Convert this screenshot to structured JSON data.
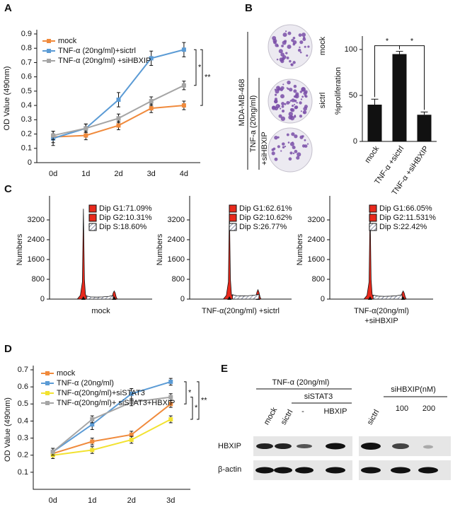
{
  "panel_labels": [
    "A",
    "B",
    "C",
    "D",
    "E"
  ],
  "chart_data": [
    {
      "type": "line",
      "ylabel": "OD Value (490nm)",
      "categories": [
        "0d",
        "1d",
        "2d",
        "3d",
        "4d"
      ],
      "series": [
        {
          "name": "mock",
          "color": "#f08a3c",
          "values": [
            0.18,
            0.19,
            0.26,
            0.38,
            0.4
          ],
          "errors": [
            0.04,
            0.03,
            0.03,
            0.03,
            0.03
          ]
        },
        {
          "name": "TNF-α (20ng/ml)+sictrl",
          "color": "#5b9bd5",
          "values": [
            0.17,
            0.24,
            0.44,
            0.73,
            0.79
          ],
          "errors": [
            0.05,
            0.03,
            0.05,
            0.05,
            0.05
          ]
        },
        {
          "name": "TNF-α (20ng/ml) +siHBXIP",
          "color": "#a5a5a5",
          "values": [
            0.19,
            0.24,
            0.31,
            0.43,
            0.54
          ],
          "errors": [
            0.03,
            0.03,
            0.03,
            0.03,
            0.03
          ]
        }
      ],
      "ylim": [
        0,
        0.9
      ],
      "yticks": [
        0,
        0.1,
        0.2,
        0.3,
        0.4,
        0.5,
        0.6,
        0.7,
        0.8,
        0.9
      ],
      "annotations": [
        "*",
        "**"
      ]
    },
    {
      "type": "bar",
      "ylabel": "%proliferation",
      "categories": [
        "mock",
        "TNF-α +sictrl",
        "TNF-α +siHBXIP"
      ],
      "values": [
        40,
        95,
        29
      ],
      "errors": [
        6,
        3,
        3
      ],
      "color": "#111111",
      "ylim": [
        0,
        110
      ],
      "yticks": [
        0,
        50,
        100
      ],
      "annotations": [
        "*",
        "*"
      ]
    },
    {
      "type": "area",
      "ylabel": "Numbers",
      "xlabel": [
        "mock"
      ],
      "xlim": [
        0,
        100
      ],
      "ylim": [
        0,
        4000
      ],
      "yticks": [
        0,
        800,
        1600,
        2400,
        3200
      ],
      "series": [
        {
          "name": "Dip G1:71.09%",
          "color": "#e8291c",
          "x": [
            27,
            30,
            32,
            33,
            34,
            35,
            36,
            38
          ],
          "values": [
            0,
            150,
            700,
            3650,
            800,
            200,
            90,
            0
          ]
        },
        {
          "name": "Dip G2:10.31%",
          "color": "#e8291c",
          "x": [
            60,
            61,
            62,
            63,
            64,
            65,
            66
          ],
          "values": [
            0,
            80,
            250,
            330,
            250,
            80,
            0
          ]
        },
        {
          "name": "Dip S:18.60%",
          "color": "#1f2d5a",
          "pattern": "hatch",
          "x": [
            36,
            40,
            46,
            52,
            58,
            62
          ],
          "values": [
            130,
            90,
            80,
            90,
            110,
            150
          ]
        }
      ]
    },
    {
      "type": "area",
      "ylabel": "Numbers",
      "xlabel": [
        "TNF-α(20ng/ml) +sictrl"
      ],
      "xlim": [
        0,
        100
      ],
      "ylim": [
        0,
        4000
      ],
      "yticks": [
        0,
        800,
        1600,
        2400,
        3200
      ],
      "series": [
        {
          "name": "Dip G1:62.61%",
          "color": "#e8291c",
          "x": [
            33,
            36,
            38,
            39,
            40,
            41,
            42,
            44
          ],
          "values": [
            0,
            150,
            700,
            3700,
            800,
            200,
            100,
            0
          ]
        },
        {
          "name": "Dip G2:10.62%",
          "color": "#e8291c",
          "x": [
            64,
            65,
            66,
            67,
            68,
            69,
            70
          ],
          "values": [
            0,
            100,
            280,
            380,
            280,
            100,
            0
          ]
        },
        {
          "name": "Dip S:26.77%",
          "color": "#1f2d5a",
          "pattern": "hatch",
          "x": [
            42,
            46,
            52,
            58,
            64,
            68
          ],
          "values": [
            180,
            140,
            130,
            140,
            160,
            200
          ]
        }
      ]
    },
    {
      "type": "area",
      "ylabel": "Numbers",
      "xlabel": [
        "TNF-α(20ng/ml)",
        "+siHBXIP"
      ],
      "xlim": [
        0,
        100
      ],
      "ylim": [
        0,
        4000
      ],
      "yticks": [
        0,
        800,
        1600,
        2400,
        3200
      ],
      "series": [
        {
          "name": "Dip G1:66.05%",
          "color": "#e8291c",
          "x": [
            33,
            36,
            38,
            39,
            40,
            41,
            42,
            44
          ],
          "values": [
            0,
            150,
            700,
            3650,
            800,
            200,
            90,
            0
          ]
        },
        {
          "name": "Dip G2:11.531%",
          "color": "#e8291c",
          "x": [
            68,
            69,
            70,
            71,
            72,
            73,
            74
          ],
          "values": [
            0,
            90,
            250,
            330,
            250,
            90,
            0
          ]
        },
        {
          "name": "Dip S:22.42%",
          "color": "#1f2d5a",
          "pattern": "hatch",
          "x": [
            42,
            47,
            53,
            59,
            65,
            70
          ],
          "values": [
            160,
            120,
            110,
            120,
            140,
            180
          ]
        }
      ]
    },
    {
      "type": "line",
      "ylabel": "OD Value (490nm)",
      "categories": [
        "0d",
        "1d",
        "2d",
        "3d"
      ],
      "series": [
        {
          "name": "mock",
          "color": "#f08a3c",
          "values": [
            0.21,
            0.28,
            0.32,
            0.5
          ],
          "errors": [
            0.02,
            0.02,
            0.02,
            0.02
          ]
        },
        {
          "name": "TNF-α (20ng/ml)",
          "color": "#5b9bd5",
          "values": [
            0.22,
            0.38,
            0.56,
            0.63
          ],
          "errors": [
            0.02,
            0.03,
            0.03,
            0.02
          ]
        },
        {
          "name": "TNF-α(20ng/ml)+siSTAT3",
          "color": "#f2e230",
          "values": [
            0.2,
            0.23,
            0.29,
            0.41
          ],
          "errors": [
            0.02,
            0.02,
            0.02,
            0.02
          ]
        },
        {
          "name": "TNF-α(20ng/ml)+ siSTAT3+HBXIP",
          "color": "#a5a5a5",
          "values": [
            0.22,
            0.41,
            0.51,
            0.54
          ],
          "errors": [
            0.02,
            0.02,
            0.02,
            0.02
          ]
        }
      ],
      "ylim": [
        0,
        0.7
      ],
      "yticks": [
        0.1,
        0.2,
        0.3,
        0.4,
        0.5,
        0.6,
        0.7
      ],
      "annotations": [
        "*",
        "*",
        "**"
      ]
    }
  ],
  "colony": {
    "cell_line": "MDA-MB-468",
    "treatment": "TNF-a (20ng/ml)",
    "rows": [
      "mock",
      "sictrl",
      "+siHBXIP"
    ]
  },
  "blot": {
    "treatment": "TNF-α (20ng/ml)",
    "group": "siSTAT3",
    "lanes": [
      "mock",
      "sictrl",
      "-",
      "HBXIP",
      "sictrl"
    ],
    "knockdown": "siHBXIP(nM)",
    "doses": [
      100,
      200
    ],
    "rows": [
      "HBXIP",
      "β-actin"
    ]
  }
}
